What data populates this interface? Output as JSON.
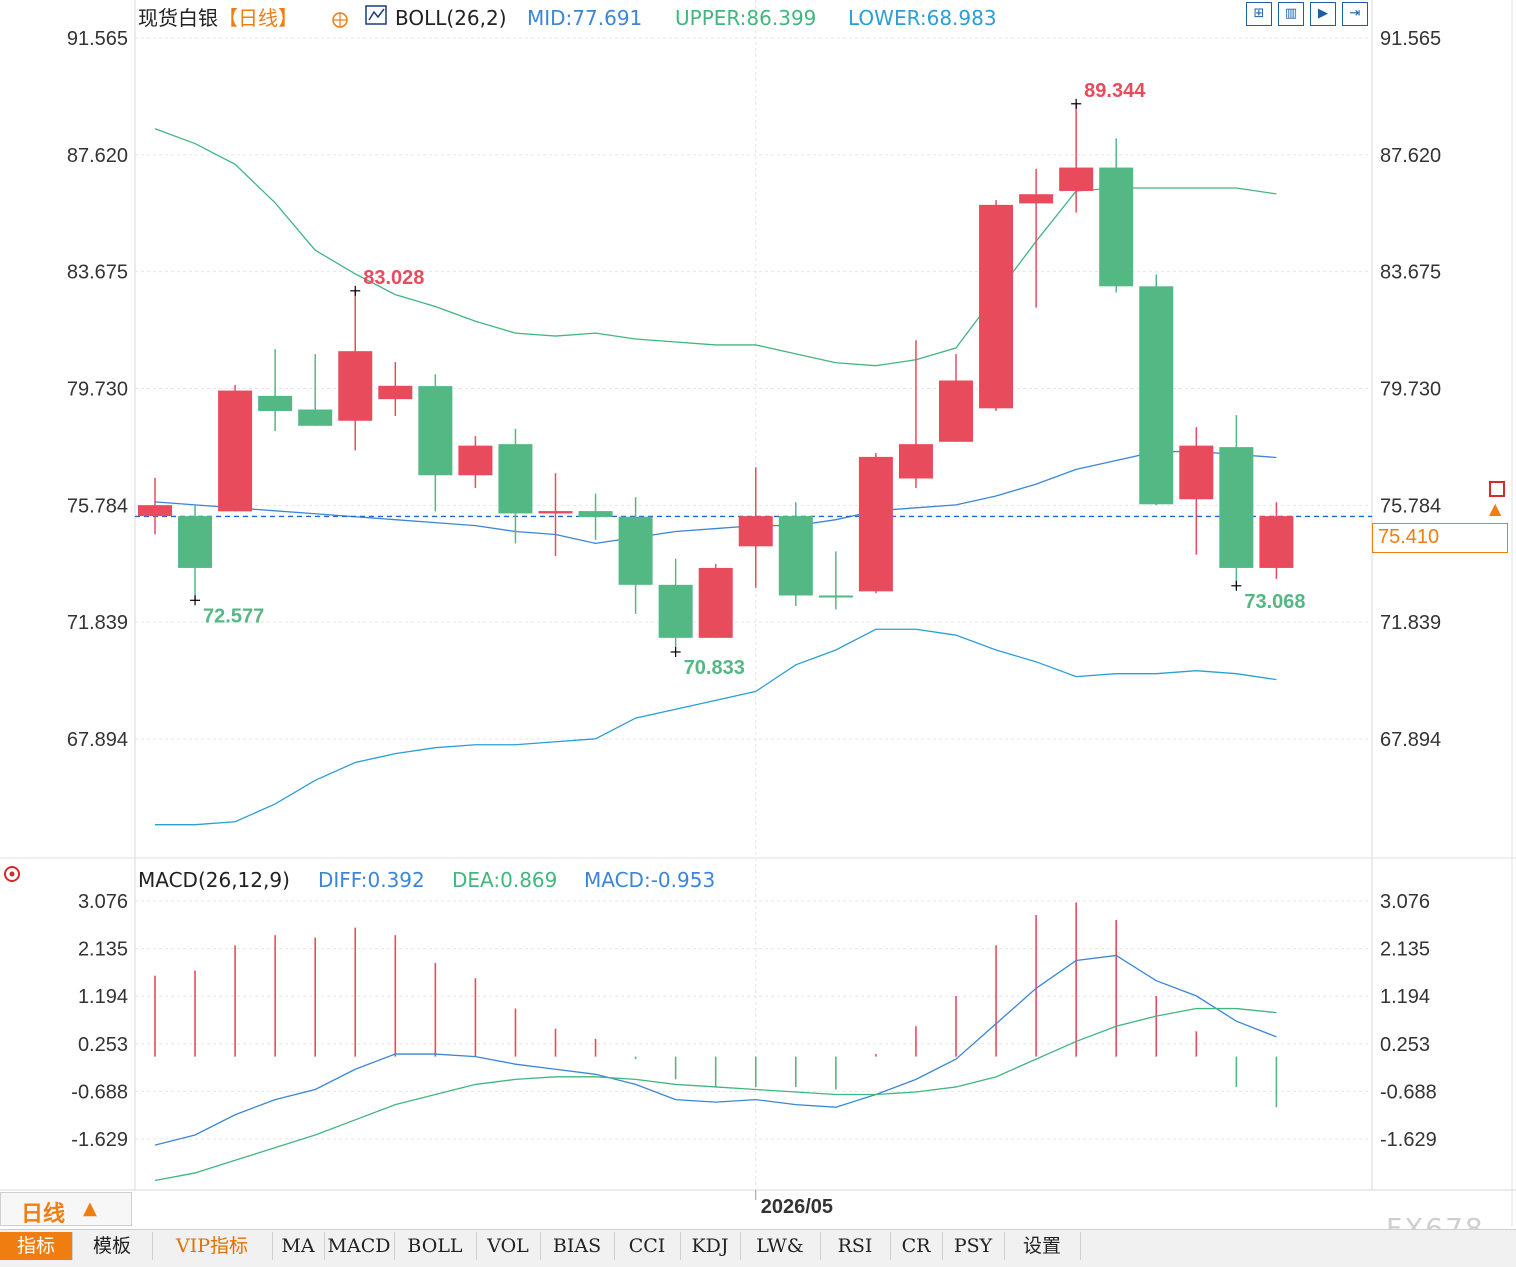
{
  "colors": {
    "up": "#e84b5c",
    "down": "#53b883",
    "mid": "#3b86d6",
    "upper": "#41b67e",
    "lower": "#2a9fd6",
    "diff": "#3b86d6",
    "dea": "#41b67e",
    "price_line": "#2266cc",
    "accent": "#f07d10",
    "grid": "#e6e6e6",
    "axis_text": "#333333"
  },
  "header": {
    "instrument": "现货白银",
    "period_tag": "【日线】",
    "indicator": "BOLL(26,2)",
    "mid": "MID:77.691",
    "upper": "UPPER:86.399",
    "lower": "LOWER:68.983",
    "icons": [
      "grid-icon",
      "chart-icon",
      "play-icon",
      "export-icon"
    ]
  },
  "macd_header": {
    "indicator": "MACD(26,12,9)",
    "diff": "DIFF:0.392",
    "dea": "DEA:0.869",
    "macd": "MACD:-0.953"
  },
  "current_price": "75.410",
  "period_button": "日线",
  "watermark": "FX678",
  "tabs": [
    {
      "label": "指标",
      "active": true
    },
    {
      "label": "模板"
    },
    {
      "label": "VIP指标",
      "vip": true
    },
    {
      "label": "MA"
    },
    {
      "label": "MACD"
    },
    {
      "label": "BOLL"
    },
    {
      "label": "VOL"
    },
    {
      "label": "BIAS"
    },
    {
      "label": "CCI"
    },
    {
      "label": "KDJ"
    },
    {
      "label": "LW&"
    },
    {
      "label": "RSI"
    },
    {
      "label": "CR"
    },
    {
      "label": "PSY"
    },
    {
      "label": "设置"
    }
  ],
  "chart_data": [
    {
      "type": "candlestick",
      "title": "现货白银",
      "y_ticks": [
        "91.565",
        "87.620",
        "83.675",
        "79.730",
        "75.784",
        "71.839",
        "67.894"
      ],
      "ylim": [
        64.9,
        92.6
      ],
      "x_label": "2026/05",
      "x_label_index": 15,
      "candles": [
        {
          "o": 75.42,
          "h": 76.71,
          "l": 74.81,
          "c": 75.79
        },
        {
          "o": 75.42,
          "h": 75.79,
          "l": 72.58,
          "c": 73.67
        },
        {
          "o": 75.58,
          "h": 79.85,
          "l": 75.58,
          "c": 79.66
        },
        {
          "o": 78.97,
          "h": 81.06,
          "l": 78.29,
          "c": 79.48
        },
        {
          "o": 79.02,
          "h": 80.89,
          "l": 78.47,
          "c": 78.47
        },
        {
          "o": 78.64,
          "h": 83.03,
          "l": 77.64,
          "c": 80.99
        },
        {
          "o": 79.37,
          "h": 80.62,
          "l": 78.8,
          "c": 79.82
        },
        {
          "o": 79.81,
          "h": 80.21,
          "l": 75.58,
          "c": 76.8
        },
        {
          "o": 76.8,
          "h": 78.12,
          "l": 76.37,
          "c": 77.8
        },
        {
          "o": 77.85,
          "h": 78.37,
          "l": 74.5,
          "c": 75.51
        },
        {
          "o": 75.51,
          "h": 76.87,
          "l": 74.07,
          "c": 75.59
        },
        {
          "o": 75.59,
          "h": 76.18,
          "l": 74.62,
          "c": 75.39
        },
        {
          "o": 75.4,
          "h": 76.06,
          "l": 72.12,
          "c": 73.1
        },
        {
          "o": 73.1,
          "h": 73.98,
          "l": 71.0,
          "c": 71.31
        },
        {
          "o": 71.31,
          "h": 73.8,
          "l": 71.31,
          "c": 73.67
        },
        {
          "o": 74.4,
          "h": 77.07,
          "l": 73.0,
          "c": 75.42
        },
        {
          "o": 75.42,
          "h": 75.89,
          "l": 72.39,
          "c": 72.74
        },
        {
          "o": 72.74,
          "h": 74.23,
          "l": 72.27,
          "c": 72.74
        },
        {
          "o": 72.88,
          "h": 77.55,
          "l": 72.82,
          "c": 77.42
        },
        {
          "o": 76.69,
          "h": 81.36,
          "l": 76.37,
          "c": 77.85
        },
        {
          "o": 77.93,
          "h": 80.89,
          "l": 77.93,
          "c": 80.0
        },
        {
          "o": 79.06,
          "h": 86.09,
          "l": 78.97,
          "c": 85.93
        },
        {
          "o": 85.98,
          "h": 87.15,
          "l": 82.46,
          "c": 86.29
        },
        {
          "o": 86.4,
          "h": 89.34,
          "l": 85.67,
          "c": 87.19
        },
        {
          "o": 87.19,
          "h": 88.18,
          "l": 82.97,
          "c": 83.18
        },
        {
          "o": 83.18,
          "h": 83.58,
          "l": 75.79,
          "c": 75.82
        },
        {
          "o": 75.99,
          "h": 78.42,
          "l": 74.12,
          "c": 77.8
        },
        {
          "o": 77.75,
          "h": 78.83,
          "l": 72.98,
          "c": 73.67
        },
        {
          "o": 73.67,
          "h": 75.89,
          "l": 73.3,
          "c": 75.42
        }
      ],
      "up_flags": [
        true,
        false,
        true,
        false,
        false,
        true,
        true,
        false,
        true,
        false,
        true,
        false,
        false,
        false,
        true,
        true,
        false,
        false,
        true,
        true,
        true,
        true,
        true,
        true,
        false,
        false,
        true,
        false,
        true
      ],
      "boll_mid": [
        75.9,
        75.8,
        75.7,
        75.6,
        75.5,
        75.4,
        75.3,
        75.2,
        75.1,
        74.9,
        74.8,
        74.5,
        74.7,
        74.9,
        75.0,
        75.1,
        75.1,
        75.3,
        75.6,
        75.7,
        75.8,
        76.1,
        76.5,
        77.0,
        77.3,
        77.6,
        77.6,
        77.5,
        77.4
      ],
      "boll_upper": [
        88.5,
        88.0,
        87.3,
        86.0,
        84.4,
        83.6,
        82.9,
        82.5,
        82.0,
        81.6,
        81.5,
        81.6,
        81.4,
        81.3,
        81.2,
        81.2,
        80.9,
        80.6,
        80.5,
        80.7,
        81.1,
        82.9,
        84.7,
        86.4,
        86.5,
        86.5,
        86.5,
        86.5,
        86.3
      ],
      "boll_lower": [
        65.0,
        65.0,
        65.1,
        65.7,
        66.5,
        67.1,
        67.4,
        67.6,
        67.7,
        67.7,
        67.8,
        67.9,
        68.6,
        68.9,
        69.2,
        69.5,
        70.4,
        70.9,
        71.6,
        71.6,
        71.4,
        70.9,
        70.5,
        70.0,
        70.1,
        70.1,
        70.2,
        70.1,
        69.9
      ],
      "annotations": [
        {
          "label": "83.028",
          "index": 5,
          "value": 83.028,
          "kind": "high"
        },
        {
          "label": "72.577",
          "index": 1,
          "value": 72.577,
          "kind": "low"
        },
        {
          "label": "70.833",
          "index": 13,
          "value": 70.833,
          "kind": "low"
        },
        {
          "label": "89.344",
          "index": 23,
          "value": 89.344,
          "kind": "high"
        },
        {
          "label": "73.068",
          "index": 27,
          "value": 73.068,
          "kind": "low"
        }
      ]
    },
    {
      "type": "macd",
      "title": "MACD(26,12,9)",
      "y_ticks": [
        "3.076",
        "2.135",
        "1.194",
        "0.253",
        "-0.688",
        "-1.629"
      ],
      "ylim": [
        -2.6,
        3.3
      ],
      "histogram": [
        1.6,
        1.7,
        2.2,
        2.4,
        2.35,
        2.55,
        2.4,
        1.85,
        1.55,
        0.95,
        0.55,
        0.35,
        -0.05,
        -0.45,
        -0.6,
        -0.6,
        -0.6,
        -0.65,
        0.05,
        0.6,
        1.2,
        2.2,
        2.8,
        3.05,
        2.7,
        1.2,
        0.5,
        -0.6,
        -1.0
      ],
      "diff": [
        -1.75,
        -1.55,
        -1.15,
        -0.85,
        -0.65,
        -0.25,
        0.05,
        0.05,
        0.0,
        -0.15,
        -0.25,
        -0.35,
        -0.55,
        -0.85,
        -0.9,
        -0.85,
        -0.95,
        -1.0,
        -0.75,
        -0.45,
        -0.05,
        0.65,
        1.35,
        1.9,
        2.0,
        1.5,
        1.2,
        0.7,
        0.39
      ],
      "dea": [
        -2.45,
        -2.3,
        -2.05,
        -1.8,
        -1.55,
        -1.25,
        -0.95,
        -0.75,
        -0.55,
        -0.45,
        -0.4,
        -0.4,
        -0.45,
        -0.55,
        -0.6,
        -0.65,
        -0.7,
        -0.75,
        -0.75,
        -0.7,
        -0.6,
        -0.4,
        -0.05,
        0.3,
        0.6,
        0.8,
        0.95,
        0.95,
        0.87
      ]
    }
  ]
}
